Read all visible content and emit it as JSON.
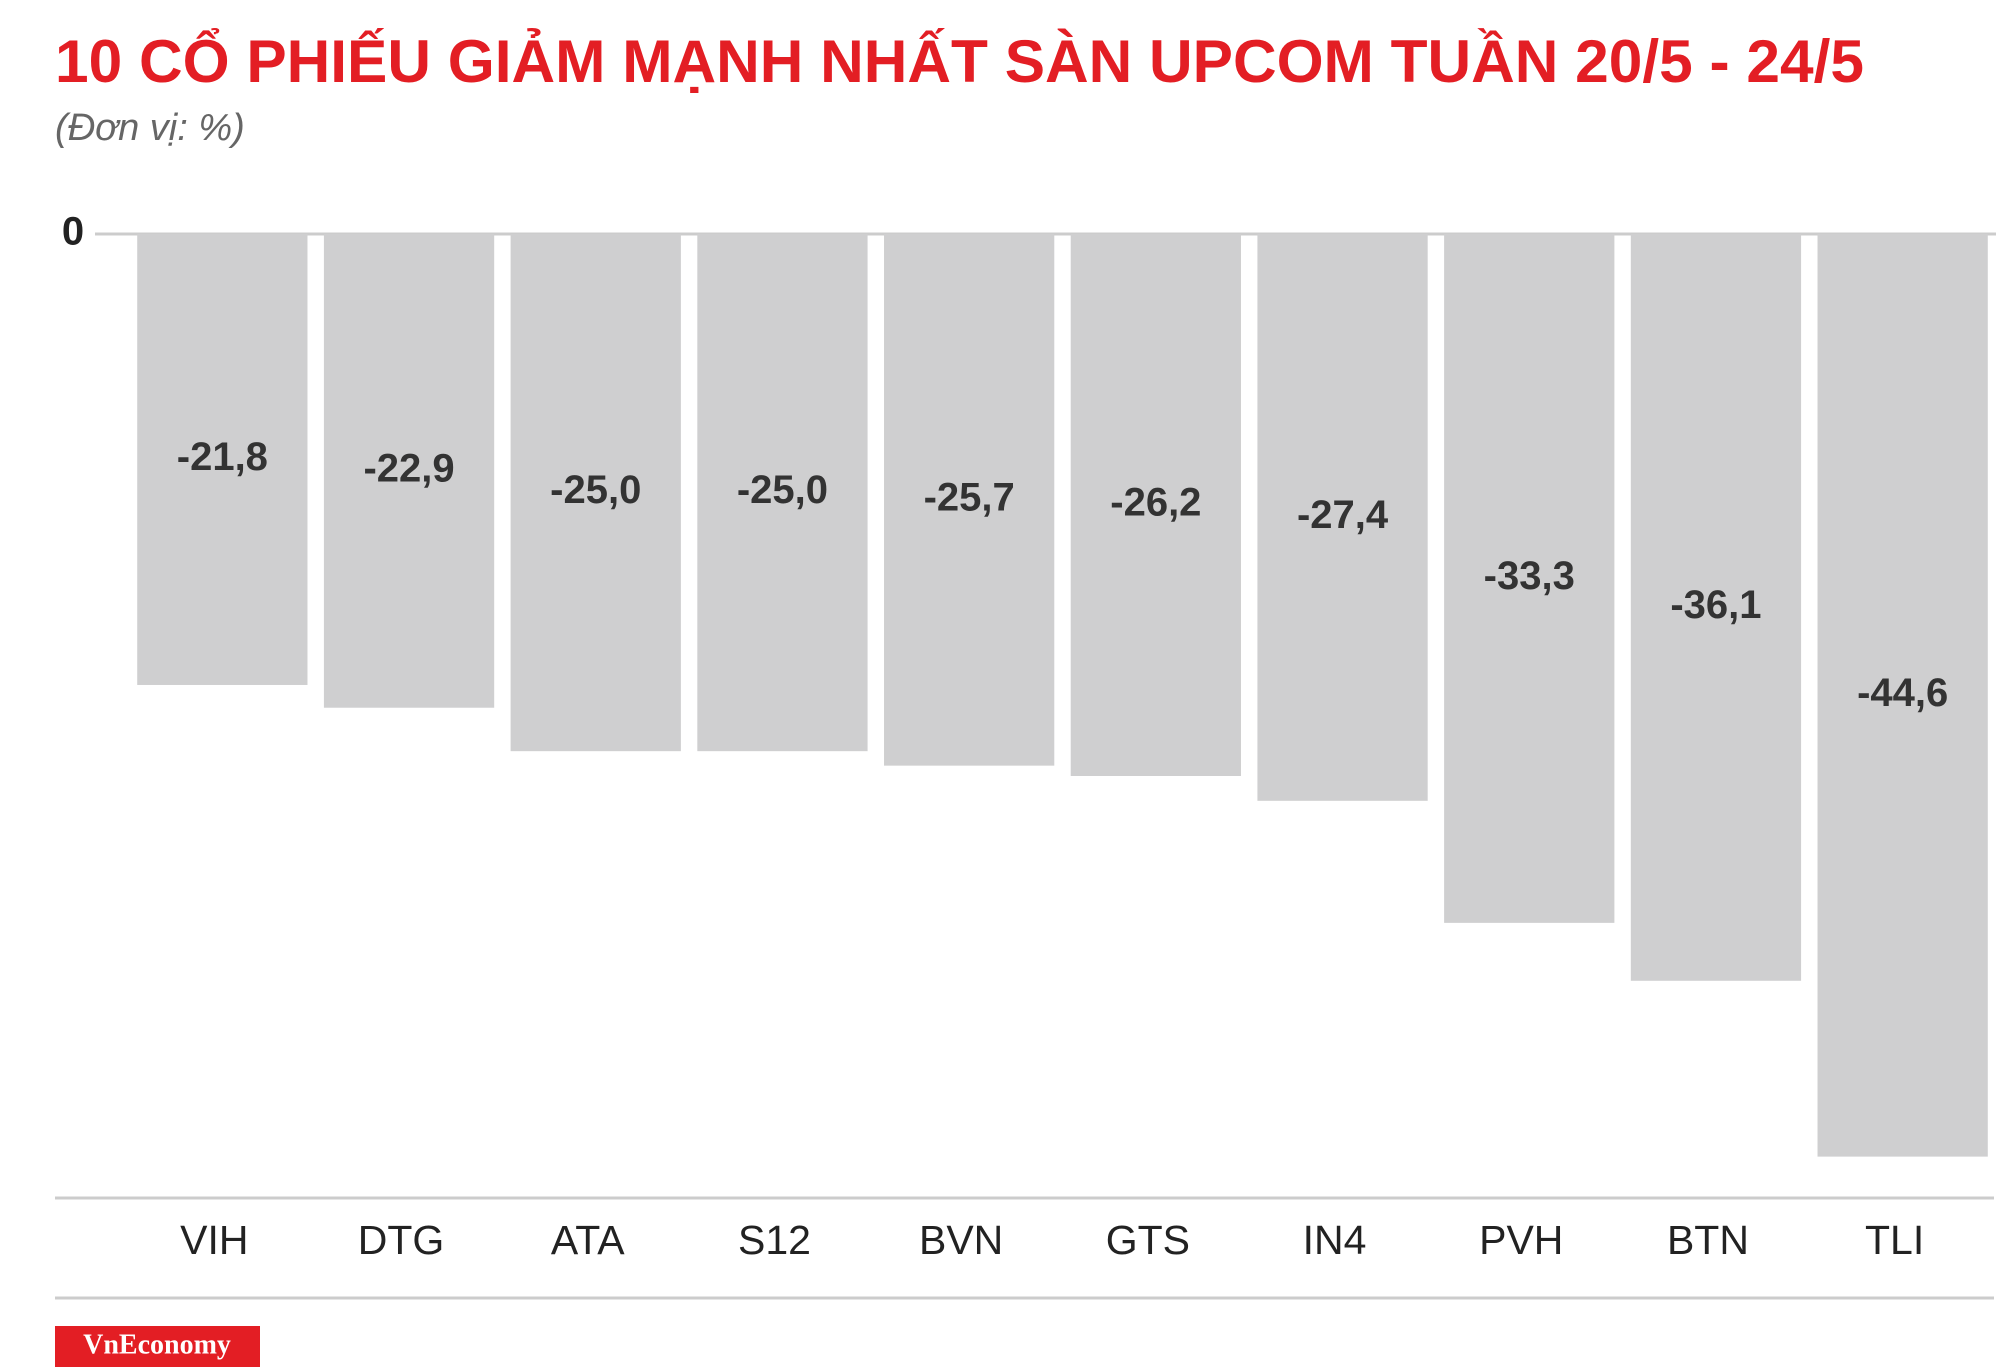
{
  "chart_data": {
    "type": "bar",
    "title": "10 CỔ PHIẾU GIẢM MẠNH NHẤT SÀN UPCOM TUẦN 20/5 - 24/5",
    "subtitle": "(Đơn vị: %)",
    "categories": [
      "VIH",
      "DTG",
      "ATA",
      "S12",
      "BVN",
      "GTS",
      "IN4",
      "PVH",
      "BTN",
      "TLI"
    ],
    "values": [
      -21.8,
      -22.9,
      -25.0,
      -25.0,
      -25.7,
      -26.2,
      -27.4,
      -33.3,
      -36.1,
      -44.6
    ],
    "value_labels": [
      "-21,8",
      "-22,9",
      "-25,0",
      "-25,0",
      "-25,7",
      "-26,2",
      "-27,4",
      "-33,3",
      "-36,1",
      "-44,6"
    ],
    "color": "#cfcfd0",
    "ylim": [
      -46.6,
      0
    ],
    "yticks": [
      0
    ]
  },
  "logo": "VnEconomy"
}
